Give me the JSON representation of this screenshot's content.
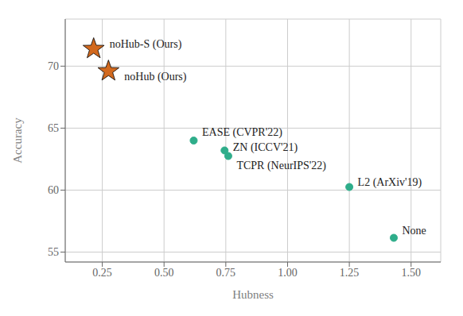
{
  "chart_data": {
    "type": "scatter",
    "xlabel": "Hubness",
    "ylabel": "Accuracy",
    "points": [
      {
        "label": "noHub-S (Ours)",
        "x": 0.215,
        "y": 71.4,
        "marker": "star",
        "color": "#D2691E"
      },
      {
        "label": "noHub (Ours)",
        "x": 0.275,
        "y": 69.6,
        "marker": "star",
        "color": "#D2691E"
      },
      {
        "label": "EASE (CVPR'22)",
        "x": 0.62,
        "y": 64.0,
        "marker": "circle",
        "color": "#2EAD8A"
      },
      {
        "label": "ZN (ICCV'21)",
        "x": 0.745,
        "y": 63.2,
        "marker": "circle",
        "color": "#2EAD8A"
      },
      {
        "label": "TCPR (NeurIPS'22)",
        "x": 0.76,
        "y": 62.75,
        "marker": "circle",
        "color": "#2EAD8A"
      },
      {
        "label": "L2 (ArXiv'19)",
        "x": 1.25,
        "y": 60.25,
        "marker": "circle",
        "color": "#2EAD8A"
      },
      {
        "label": "None",
        "x": 1.43,
        "y": 56.15,
        "marker": "circle",
        "color": "#2EAD8A"
      }
    ],
    "xlim": [
      0.1,
      1.62
    ],
    "ylim": [
      54.2,
      73.8
    ],
    "xticks": [
      {
        "value": 0.25,
        "label": "0.25"
      },
      {
        "value": 0.5,
        "label": "0.50"
      },
      {
        "value": 0.75,
        "label": "0.75"
      },
      {
        "value": 1.0,
        "label": "1.00"
      },
      {
        "value": 1.25,
        "label": "1.25"
      },
      {
        "value": 1.5,
        "label": "1.50"
      }
    ],
    "yticks": [
      55,
      60,
      65,
      70
    ],
    "grid": true
  }
}
